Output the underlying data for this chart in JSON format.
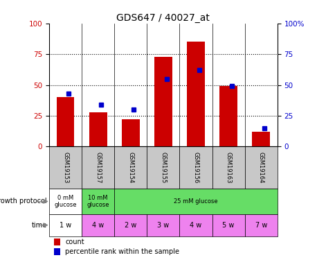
{
  "title": "GDS647 / 40027_at",
  "samples": [
    "GSM19153",
    "GSM19157",
    "GSM19154",
    "GSM19155",
    "GSM19156",
    "GSM19163",
    "GSM19164"
  ],
  "bar_values": [
    40,
    28,
    22,
    73,
    85,
    49,
    12
  ],
  "percentile_values": [
    43,
    34,
    30,
    55,
    62,
    49,
    15
  ],
  "bar_color": "#cc0000",
  "percentile_color": "#0000cc",
  "ylim": [
    0,
    100
  ],
  "yticks": [
    0,
    25,
    50,
    75,
    100
  ],
  "right_yticklabels": [
    "0",
    "25",
    "50",
    "75",
    "100%"
  ],
  "grid_color": "black",
  "growth_groups": [
    {
      "label": "0 mM\nglucose",
      "start": 0,
      "end": 1,
      "color": "#ffffff"
    },
    {
      "label": "10 mM\nglucose",
      "start": 1,
      "end": 2,
      "color": "#66dd66"
    },
    {
      "label": "25 mM glucose",
      "start": 2,
      "end": 7,
      "color": "#66dd66"
    }
  ],
  "time_labels": [
    "1 w",
    "4 w",
    "2 w",
    "3 w",
    "4 w",
    "5 w",
    "7 w"
  ],
  "time_colors": [
    "#ffffff",
    "#ee82ee",
    "#ee82ee",
    "#ee82ee",
    "#ee82ee",
    "#ee82ee",
    "#ee82ee"
  ],
  "sample_bg_color": "#c8c8c8",
  "legend_count_color": "#cc0000",
  "legend_percentile_color": "#0000cc",
  "left_tick_color": "#cc0000",
  "right_tick_color": "#0000cc",
  "title_color": "#000000",
  "title_fontsize": 10,
  "tick_fontsize": 7.5,
  "sample_fontsize": 6,
  "annotation_fontsize": 7,
  "legend_fontsize": 7
}
